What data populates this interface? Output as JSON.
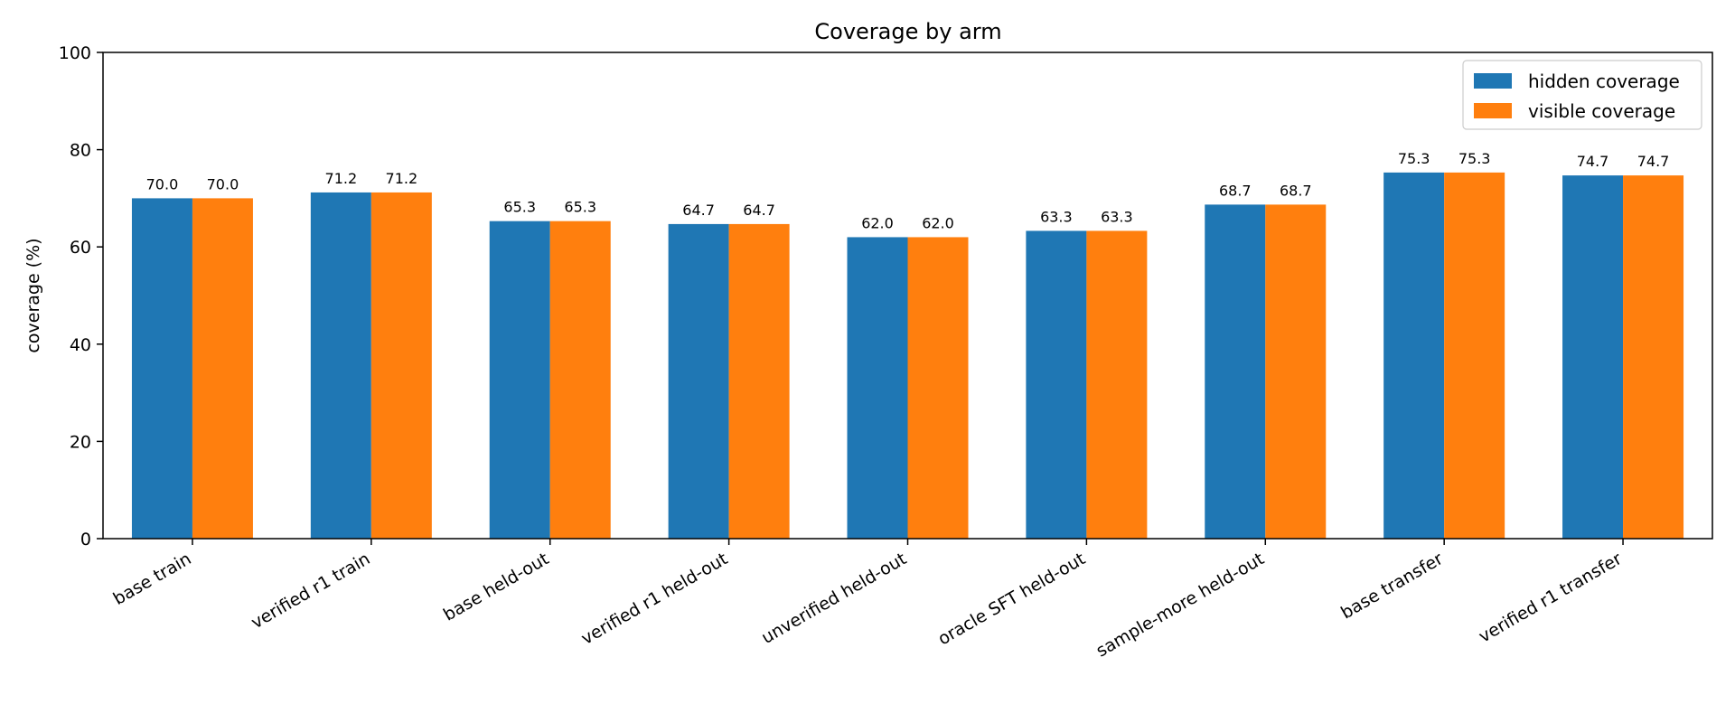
{
  "chart_data": {
    "type": "bar",
    "title": "Coverage by arm",
    "xlabel": "",
    "ylabel": "coverage (%)",
    "ylim": [
      0,
      100
    ],
    "yticks": [
      0,
      20,
      40,
      60,
      80,
      100
    ],
    "grid": false,
    "legend_position": "top-right",
    "categories": [
      "base train",
      "verified r1 train",
      "base held-out",
      "verified r1 held-out",
      "unverified held-out",
      "oracle SFT held-out",
      "sample-more held-out",
      "base transfer",
      "verified r1 transfer"
    ],
    "series": [
      {
        "name": "hidden coverage",
        "color": "#1f77b4",
        "values": [
          70.0,
          71.2,
          65.3,
          64.7,
          62.0,
          63.3,
          68.7,
          75.3,
          74.7
        ],
        "labels": [
          "70.0",
          "71.2",
          "65.3",
          "64.7",
          "62.0",
          "63.3",
          "68.7",
          "75.3",
          "74.7"
        ]
      },
      {
        "name": "visible coverage",
        "color": "#ff7f0e",
        "values": [
          70.0,
          71.2,
          65.3,
          64.7,
          62.0,
          63.3,
          68.7,
          75.3,
          74.7
        ],
        "labels": [
          "70.0",
          "71.2",
          "65.3",
          "64.7",
          "62.0",
          "63.3",
          "68.7",
          "75.3",
          "74.7"
        ]
      }
    ]
  }
}
